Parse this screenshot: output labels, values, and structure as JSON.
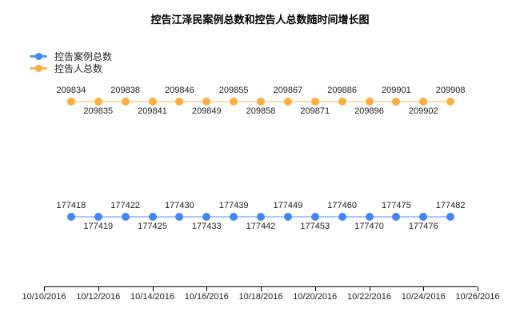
{
  "chart_data": {
    "type": "line",
    "title": "控告江泽民案例总数和控告人总数随时间增长图",
    "background": "#FFFFFF",
    "grid": "off",
    "y_axis": "hidden",
    "legend_position": "top-left",
    "point_label_pattern": "alternating above/below starting above",
    "x_tick_labels": [
      "10/10/2016",
      "10/12/2016",
      "10/14/2016",
      "10/16/2016",
      "10/18/2016",
      "10/20/2016",
      "10/22/2016",
      "10/24/2016",
      "10/26/2016"
    ],
    "series": [
      {
        "name": "控告案例总数",
        "color": "#4285F4",
        "values": [
          177418,
          177419,
          177422,
          177425,
          177430,
          177433,
          177439,
          177442,
          177449,
          177453,
          177460,
          177470,
          177475,
          177476,
          177482
        ]
      },
      {
        "name": "控告人总数",
        "color": "#FBAD3F",
        "values": [
          209834,
          209835,
          209838,
          209841,
          209846,
          209849,
          209855,
          209858,
          209867,
          209871,
          209886,
          209896,
          209901,
          209902,
          209908
        ]
      }
    ],
    "axis_color": "#000000",
    "label_color": "#222222"
  }
}
